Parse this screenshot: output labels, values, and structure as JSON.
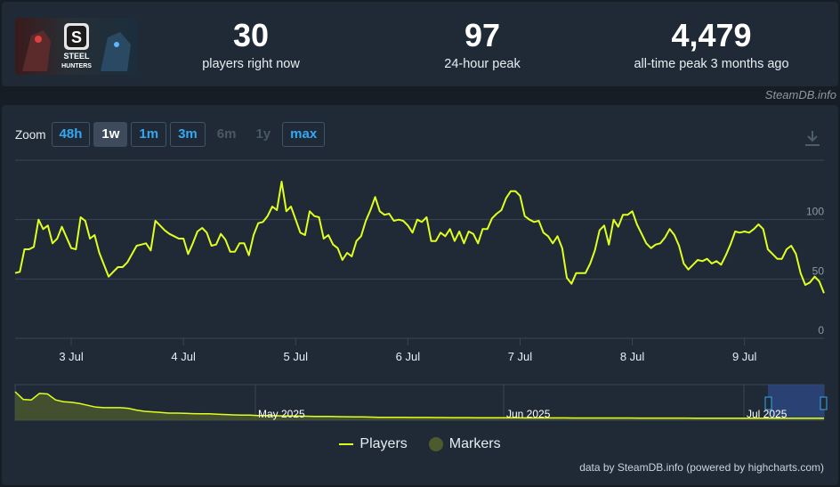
{
  "stats": {
    "current": {
      "value": "30",
      "label": "players right now"
    },
    "peak24": {
      "value": "97",
      "label": "24-hour peak"
    },
    "alltime": {
      "value": "4,479",
      "label": "all-time peak 3 months ago"
    }
  },
  "thumbnail": {
    "title_line1": "STEEL",
    "title_line2": "HUNTERS",
    "logo_letter": "S"
  },
  "credit_top": "SteamDB.info",
  "zoom": {
    "label": "Zoom",
    "buttons": [
      {
        "label": "48h",
        "state": "enabled"
      },
      {
        "label": "1w",
        "state": "active"
      },
      {
        "label": "1m",
        "state": "enabled"
      },
      {
        "label": "3m",
        "state": "enabled"
      },
      {
        "label": "6m",
        "state": "disabled"
      },
      {
        "label": "1y",
        "state": "disabled"
      },
      {
        "label": "max",
        "state": "enabled"
      }
    ]
  },
  "legend": {
    "players": "Players",
    "markers": "Markers"
  },
  "credit_bottom": "data by SteamDB.info (powered by highcharts.com)",
  "colors": {
    "line": "#e0ff1f",
    "grid": "#3a4654",
    "navigator_selection": "#2f4a8a",
    "marker": "#4c5a2e"
  },
  "chart_data": {
    "type": "line",
    "series": [
      {
        "name": "Players"
      }
    ],
    "x_tick_labels": [
      "3 Jul",
      "4 Jul",
      "5 Jul",
      "6 Jul",
      "7 Jul",
      "8 Jul",
      "9 Jul"
    ],
    "y_tick_labels": [
      "0",
      "50",
      "100"
    ],
    "ylim": [
      0,
      150
    ],
    "y_ticks": [
      0,
      50,
      100,
      150
    ],
    "x_start": "2 Jul 12:00",
    "x_end": "9 Jul 19:00",
    "x_step_hours": 1,
    "values": [
      55,
      56,
      75,
      75,
      77,
      100,
      92,
      95,
      80,
      84,
      94,
      85,
      76,
      75,
      102,
      99,
      84,
      87,
      72,
      62,
      52,
      56,
      60,
      60,
      64,
      71,
      78,
      79,
      80,
      74,
      99,
      95,
      91,
      88,
      86,
      84,
      84,
      71,
      80,
      90,
      93,
      89,
      78,
      79,
      88,
      83,
      73,
      73,
      80,
      80,
      70,
      87,
      97,
      98,
      103,
      111,
      108,
      132,
      107,
      111,
      100,
      89,
      87,
      107,
      103,
      102,
      84,
      87,
      79,
      76,
      66,
      72,
      69,
      82,
      86,
      99,
      108,
      119,
      107,
      104,
      105,
      99,
      100,
      99,
      95,
      89,
      100,
      98,
      102,
      82,
      82,
      89,
      86,
      92,
      82,
      90,
      80,
      90,
      88,
      80,
      92,
      92,
      101,
      105,
      108,
      118,
      124,
      124,
      120,
      103,
      100,
      98,
      99,
      89,
      86,
      80,
      86,
      76,
      51,
      46,
      55,
      55,
      55,
      63,
      74,
      91,
      95,
      79,
      100,
      94,
      104,
      104,
      107,
      96,
      88,
      80,
      76,
      79,
      80,
      85,
      92,
      87,
      78,
      63,
      58,
      62,
      66,
      65,
      67,
      63,
      65,
      62,
      70,
      79,
      90,
      89,
      90,
      89,
      92,
      96,
      92,
      75,
      71,
      67,
      67,
      75,
      78,
      71,
      55,
      45,
      47,
      52,
      48,
      38
    ],
    "navigator": {
      "x_labels": [
        "May 2025",
        "Jun 2025",
        "Jul 2025"
      ],
      "values": [
        4479,
        3200,
        3100,
        4200,
        4100,
        3100,
        2800,
        2700,
        2500,
        2200,
        1900,
        1800,
        1800,
        1800,
        1700,
        1400,
        1200,
        1100,
        1000,
        900,
        900,
        850,
        800,
        780,
        780,
        700,
        650,
        600,
        550,
        550,
        500,
        480,
        460,
        440,
        420,
        400,
        380,
        350,
        350,
        330,
        300,
        280,
        250,
        250,
        230,
        200,
        200,
        180,
        180,
        170,
        160,
        160,
        150,
        150,
        140,
        130,
        130,
        120,
        120,
        110,
        110,
        100,
        100,
        95,
        95,
        90,
        90,
        85,
        85,
        80,
        80,
        80,
        75,
        75,
        70,
        70,
        70,
        65,
        65,
        60,
        60,
        60,
        55,
        55,
        50,
        50,
        50,
        50,
        45,
        45,
        45,
        40,
        40,
        40,
        40,
        35,
        35,
        35,
        35,
        35,
        30
      ]
    }
  }
}
